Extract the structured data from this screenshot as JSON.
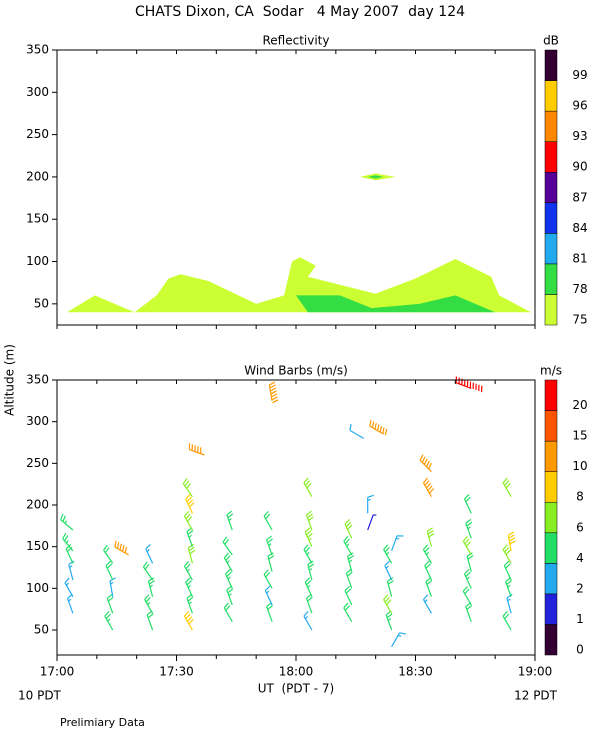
{
  "title": "CHATS Dixon, CA  Sodar   4 May 2007  day 124",
  "y_label": "Altitude (m)",
  "x_label": "UT  (PDT - 7)",
  "left_note": "10 PDT",
  "right_note": "12 PDT",
  "footer": "Prelimiary Data",
  "chart_data": [
    {
      "type": "contour",
      "title": "Reflectivity",
      "xlim": [
        0,
        120
      ],
      "ylim": [
        25,
        350
      ],
      "xticks": [
        0,
        10,
        20,
        30,
        40,
        50,
        60,
        70,
        80,
        90,
        100,
        110,
        120
      ],
      "yticks": [
        50,
        100,
        150,
        200,
        250,
        300,
        350
      ],
      "colorbar": {
        "label": "dB",
        "levels": [
          75,
          78,
          81,
          84,
          87,
          90,
          93,
          96,
          99
        ],
        "colors": [
          "#ccff33",
          "#33dd44",
          "#22aaee",
          "#1133ee",
          "#550099",
          "#ff0000",
          "#ff8800",
          "#ffcc00",
          "#330033"
        ]
      },
      "regions": [
        {
          "level": 75,
          "points": [
            [
              2.5,
              40
            ],
            [
              9.5,
              60
            ],
            [
              19.5,
              40
            ],
            [
              25,
              60
            ],
            [
              28,
              80
            ],
            [
              31,
              85
            ],
            [
              38,
              77
            ],
            [
              50,
              50
            ],
            [
              57,
              60
            ],
            [
              59,
              100
            ],
            [
              61,
              105
            ],
            [
              65,
              95
            ],
            [
              63,
              82
            ],
            [
              80,
              62
            ],
            [
              90,
              80
            ],
            [
              100,
              103
            ],
            [
              109,
              82
            ],
            [
              111,
              60
            ],
            [
              119,
              40
            ]
          ]
        },
        {
          "level": 78,
          "points": [
            [
              60,
              60
            ],
            [
              71,
              60
            ],
            [
              79,
              45
            ],
            [
              91,
              50
            ],
            [
              100,
              60
            ],
            [
              110,
              40
            ],
            [
              63,
              40
            ]
          ]
        },
        {
          "level": 75,
          "points": [
            [
              76,
              200
            ],
            [
              80,
              204
            ],
            [
              85,
              200
            ],
            [
              80,
              196
            ]
          ]
        },
        {
          "level": 78,
          "points": [
            [
              78,
              200
            ],
            [
              80,
              202
            ],
            [
              82,
              200
            ],
            [
              80,
              198
            ]
          ]
        }
      ]
    },
    {
      "type": "barbs",
      "title": "Wind Barbs (m/s)",
      "xlim": [
        0,
        120
      ],
      "ylim": [
        20,
        350
      ],
      "xticks": [
        {
          "value": 0,
          "label": "17:00"
        },
        {
          "value": 30,
          "label": "17:30"
        },
        {
          "value": 60,
          "label": "18:00"
        },
        {
          "value": 90,
          "label": "18:30"
        },
        {
          "value": 120,
          "label": "19:00"
        }
      ],
      "xminorticks": [
        10,
        20,
        40,
        50,
        70,
        80,
        100,
        110
      ],
      "yticks": [
        50,
        100,
        150,
        200,
        250,
        300,
        350
      ],
      "colorbar": {
        "label": "m/s",
        "levels": [
          0,
          1,
          2,
          4,
          6,
          8,
          10,
          15,
          20
        ],
        "colors": [
          "#330033",
          "#2222dd",
          "#22aaee",
          "#22dd66",
          "#88ee22",
          "#ffcc00",
          "#ff9900",
          "#ff5500",
          "#ff0000"
        ]
      },
      "barbs": {
        "time": [
          4,
          4,
          4,
          4,
          4,
          4,
          14,
          14,
          14,
          14,
          14,
          18,
          24,
          24,
          24,
          24,
          24,
          34,
          34,
          34,
          34,
          34,
          34,
          34,
          34,
          34,
          37,
          44,
          44,
          44,
          44,
          44,
          44,
          54,
          54,
          54,
          54,
          54,
          54,
          54,
          64,
          64,
          64,
          64,
          64,
          64,
          64,
          64,
          74,
          74,
          74,
          74,
          74,
          74,
          78,
          78,
          77,
          84,
          84,
          84,
          84,
          84,
          84,
          84,
          82,
          94,
          94,
          94,
          94,
          94,
          94,
          94,
          104,
          104,
          104,
          104,
          104,
          104,
          104,
          104,
          114,
          114,
          114,
          114,
          114,
          114,
          114
        ],
        "altitude": [
          70,
          90,
          110,
          130,
          145,
          170,
          50,
          70,
          90,
          110,
          130,
          140,
          50,
          70,
          90,
          110,
          130,
          50,
          70,
          90,
          110,
          130,
          150,
          170,
          190,
          210,
          260,
          60,
          80,
          100,
          120,
          140,
          170,
          60,
          80,
          100,
          120,
          140,
          170,
          325,
          50,
          70,
          90,
          110,
          130,
          150,
          170,
          210,
          60,
          80,
          100,
          120,
          140,
          160,
          190,
          170,
          280,
          30,
          50,
          70,
          90,
          110,
          130,
          145,
          285,
          70,
          90,
          110,
          130,
          150,
          210,
          240,
          60,
          80,
          100,
          120,
          140,
          160,
          190,
          340,
          50,
          70,
          90,
          110,
          130,
          145,
          210
        ],
        "speed": [
          3,
          3,
          3,
          4,
          5,
          5,
          5,
          4,
          3,
          4,
          4,
          10,
          4,
          5,
          5,
          4,
          3,
          8,
          5,
          5,
          5,
          6,
          5,
          6,
          8,
          6,
          10,
          4,
          5,
          5,
          5,
          4,
          5,
          4,
          3,
          4,
          4,
          5,
          4,
          14,
          3,
          4,
          5,
          5,
          5,
          7,
          6,
          6,
          4,
          4,
          4,
          5,
          5,
          6,
          3,
          1,
          2,
          3,
          5,
          6,
          4,
          3,
          5,
          3,
          14,
          3,
          4,
          4,
          5,
          6,
          10,
          10,
          4,
          4,
          5,
          4,
          6,
          5,
          4,
          20,
          4,
          3,
          5,
          4,
          6,
          8,
          6
        ],
        "direction": [
          340,
          330,
          345,
          335,
          320,
          310,
          330,
          340,
          350,
          335,
          325,
          300,
          340,
          330,
          345,
          325,
          335,
          330,
          340,
          335,
          330,
          345,
          340,
          330,
          335,
          325,
          290,
          330,
          340,
          335,
          330,
          325,
          340,
          340,
          335,
          330,
          345,
          340,
          330,
          350,
          330,
          340,
          335,
          345,
          330,
          335,
          340,
          330,
          330,
          335,
          340,
          345,
          330,
          335,
          0,
          20,
          300,
          30,
          340,
          330,
          345,
          335,
          330,
          20,
          300,
          330,
          340,
          335,
          330,
          345,
          330,
          315,
          340,
          330,
          335,
          345,
          330,
          340,
          335,
          290,
          330,
          345,
          340,
          335,
          330,
          350,
          330
        ]
      }
    }
  ]
}
